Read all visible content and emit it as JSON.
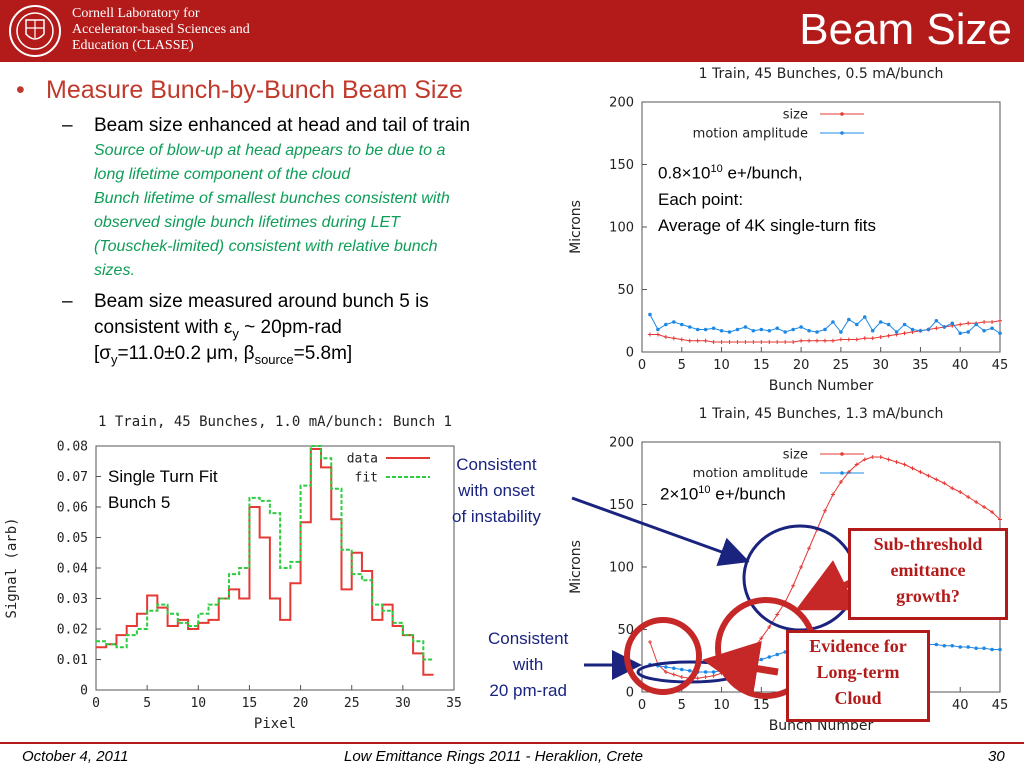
{
  "header": {
    "org_lines": [
      "Cornell Laboratory for",
      "Accelerator-based Sciences and",
      "Education (CLASSE)"
    ],
    "title": "Beam Size",
    "brand_color": "#b31b1b"
  },
  "bullets": {
    "main": "Measure Bunch-by-Bunch Beam Size",
    "sub1": "Beam size enhanced at head and tail of train",
    "sub1_notes": [
      "Source of blow-up at head appears to be due to a",
      "long lifetime component of the cloud",
      "Bunch lifetime of smallest bunches consistent with",
      "observed single bunch lifetimes during LET",
      "(Touschek-limited) consistent with relative bunch",
      "sizes."
    ],
    "sub2_line1": "Beam size measured around bunch 5 is",
    "sub2_line2": "consistent with εy ~ 20pm-rad",
    "sub2_line3": "[σy=11.0±0.2 μm, βsource=5.8m]"
  },
  "annotations": {
    "top_plot_text1": "0.8×1010 e+/bunch,",
    "top_plot_text2": "Each point:",
    "top_plot_text3": "Average of 4K single-turn fits",
    "bottom_plot_text": "2×1010 e+/bunch",
    "left_plot_text1": "Single Turn Fit",
    "left_plot_text2": "Bunch 5",
    "onset_note": [
      "Consistent",
      "with onset",
      "of instability"
    ],
    "pmrad_note": [
      "Consistent",
      "with",
      "20 pm-rad"
    ],
    "subthreshold_box": [
      "Sub-threshold",
      "emittance",
      "growth?"
    ],
    "cloud_box": [
      "Evidence for",
      "Long-term",
      "Cloud"
    ]
  },
  "footer": {
    "date": "October 4, 2011",
    "conference": "Low Emittance Rings 2011 - Heraklion, Crete",
    "page": "30"
  },
  "chart_data": [
    {
      "type": "line",
      "title": "1 Train, 45 Bunches, 0.5 mA/bunch",
      "xlabel": "Bunch Number",
      "ylabel": "Microns",
      "xlim": [
        0,
        45
      ],
      "ylim": [
        0,
        200
      ],
      "xticks": [
        0,
        5,
        10,
        15,
        20,
        25,
        30,
        35,
        40,
        45
      ],
      "yticks": [
        0,
        50,
        100,
        150,
        200
      ],
      "legend_position": "top-right",
      "x": [
        1,
        2,
        3,
        4,
        5,
        6,
        7,
        8,
        9,
        10,
        11,
        12,
        13,
        14,
        15,
        16,
        17,
        18,
        19,
        20,
        21,
        22,
        23,
        24,
        25,
        26,
        27,
        28,
        29,
        30,
        31,
        32,
        33,
        34,
        35,
        36,
        37,
        38,
        39,
        40,
        41,
        42,
        43,
        44,
        45
      ],
      "series": [
        {
          "name": "size",
          "color": "#e53935",
          "values": [
            14,
            14,
            12,
            11,
            10,
            9,
            9,
            9,
            8,
            8,
            8,
            8,
            8,
            8,
            8,
            8,
            8,
            8,
            8,
            9,
            9,
            9,
            9,
            9,
            10,
            10,
            10,
            11,
            11,
            12,
            13,
            14,
            15,
            16,
            17,
            18,
            19,
            20,
            21,
            22,
            23,
            23,
            24,
            24,
            25
          ]
        },
        {
          "name": "motion amplitude",
          "color": "#1e88e5",
          "values": [
            30,
            18,
            22,
            24,
            22,
            20,
            18,
            18,
            19,
            17,
            16,
            18,
            20,
            17,
            18,
            17,
            19,
            16,
            18,
            20,
            17,
            16,
            18,
            24,
            16,
            26,
            22,
            28,
            17,
            24,
            22,
            16,
            22,
            18,
            17,
            18,
            25,
            20,
            23,
            15,
            16,
            22,
            17,
            19,
            15
          ]
        }
      ]
    },
    {
      "type": "line",
      "title": "1 Train, 45 Bunches, 1.3 mA/bunch",
      "xlabel": "Bunch Number",
      "ylabel": "Microns",
      "xlim": [
        0,
        45
      ],
      "ylim": [
        0,
        200
      ],
      "xticks": [
        0,
        5,
        10,
        15,
        20,
        25,
        30,
        35,
        40,
        45
      ],
      "yticks": [
        0,
        50,
        100,
        150,
        200
      ],
      "legend_position": "top-right",
      "x": [
        1,
        2,
        3,
        4,
        5,
        6,
        7,
        8,
        9,
        10,
        11,
        12,
        13,
        14,
        15,
        16,
        17,
        18,
        19,
        20,
        21,
        22,
        23,
        24,
        25,
        26,
        27,
        28,
        29,
        30,
        31,
        32,
        33,
        34,
        35,
        36,
        37,
        38,
        39,
        40,
        41,
        42,
        43,
        44,
        45
      ],
      "series": [
        {
          "name": "size",
          "color": "#e53935",
          "values": [
            40,
            22,
            16,
            14,
            12,
            11,
            11,
            12,
            13,
            15,
            18,
            22,
            28,
            35,
            43,
            52,
            62,
            72,
            85,
            100,
            115,
            130,
            145,
            158,
            168,
            176,
            182,
            186,
            188,
            188,
            186,
            184,
            182,
            179,
            176,
            173,
            170,
            167,
            163,
            160,
            156,
            152,
            148,
            144,
            138
          ]
        },
        {
          "name": "motion amplitude",
          "color": "#1e88e5",
          "values": [
            22,
            21,
            20,
            19,
            18,
            17,
            16,
            16,
            16,
            17,
            18,
            20,
            22,
            24,
            26,
            28,
            30,
            32,
            34,
            36,
            38,
            40,
            42,
            44,
            45,
            46,
            46,
            47,
            46,
            45,
            43,
            42,
            41,
            40,
            39,
            38,
            38,
            37,
            37,
            36,
            36,
            35,
            35,
            34,
            34
          ]
        }
      ]
    },
    {
      "type": "line",
      "title": "1 Train, 45 Bunches, 1.0 mA/bunch:  Bunch 1",
      "xlabel": "Pixel",
      "ylabel": "Signal (arb)",
      "xlim": [
        0,
        35
      ],
      "ylim": [
        0,
        0.08
      ],
      "xticks": [
        0,
        5,
        10,
        15,
        20,
        25,
        30,
        35
      ],
      "yticks": [
        0,
        0.01,
        0.02,
        0.03,
        0.04,
        0.05,
        0.06,
        0.07,
        0.08
      ],
      "legend_position": "top-right",
      "series": [
        {
          "name": "data",
          "color": "#e53935",
          "step": true,
          "x": [
            0,
            1,
            2,
            3,
            4,
            5,
            6,
            7,
            8,
            9,
            10,
            11,
            12,
            13,
            14,
            15,
            16,
            17,
            18,
            19,
            20,
            21,
            22,
            23,
            24,
            25,
            26,
            27,
            28,
            29,
            30,
            31,
            32
          ],
          "values": [
            0.014,
            0.015,
            0.018,
            0.021,
            0.025,
            0.031,
            0.027,
            0.021,
            0.023,
            0.02,
            0.022,
            0.023,
            0.03,
            0.033,
            0.03,
            0.06,
            0.05,
            0.03,
            0.023,
            0.035,
            0.055,
            0.079,
            0.073,
            0.056,
            0.033,
            0.045,
            0.039,
            0.023,
            0.028,
            0.021,
            0.018,
            0.012,
            0.005
          ]
        },
        {
          "name": "fit",
          "color": "#2ecc40",
          "step": true,
          "x": [
            0,
            1,
            2,
            3,
            4,
            5,
            6,
            7,
            8,
            9,
            10,
            11,
            12,
            13,
            14,
            15,
            16,
            17,
            18,
            19,
            20,
            21,
            22,
            23,
            24,
            25,
            26,
            27,
            28,
            29,
            30,
            31,
            32
          ],
          "values": [
            0.016,
            0.015,
            0.014,
            0.018,
            0.02,
            0.026,
            0.028,
            0.025,
            0.022,
            0.021,
            0.025,
            0.028,
            0.03,
            0.038,
            0.04,
            0.063,
            0.062,
            0.058,
            0.04,
            0.042,
            0.067,
            0.08,
            0.076,
            0.066,
            0.046,
            0.038,
            0.036,
            0.028,
            0.026,
            0.022,
            0.018,
            0.016,
            0.01
          ]
        }
      ]
    }
  ]
}
